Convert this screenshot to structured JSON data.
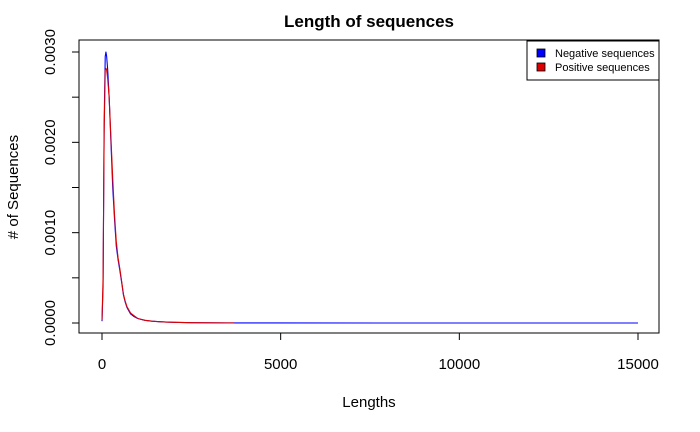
{
  "chart_data": {
    "type": "line",
    "title": "Length of sequences",
    "xlabel": "Lengths",
    "ylabel": "# of Sequences",
    "xlim": [
      0,
      15000
    ],
    "ylim": [
      0,
      0.003
    ],
    "x_ticks": [
      0,
      5000,
      10000,
      15000
    ],
    "x_tick_labels": [
      "0",
      "5000",
      "10000",
      "15000"
    ],
    "y_ticks": [
      0,
      0.0005,
      0.001,
      0.0015,
      0.002,
      0.0025,
      0.003
    ],
    "y_tick_labels": [
      "0.0000",
      "",
      "0.0010",
      "",
      "0.0020",
      "",
      "0.0030"
    ],
    "legend_position": "top-right",
    "grid": false,
    "series": [
      {
        "name": "Negative sequences",
        "color": "#0000ff",
        "x": [
          0,
          30,
          60,
          90,
          110,
          130,
          160,
          200,
          250,
          300,
          350,
          400,
          450,
          500,
          550,
          600,
          650,
          700,
          800,
          900,
          1000,
          1200,
          1400,
          1600,
          1800,
          2000,
          2500,
          3000,
          3500,
          3700,
          5000,
          8000,
          10000,
          12000,
          15000
        ],
        "y": [
          2e-05,
          0.0004,
          0.0022,
          0.00295,
          0.003,
          0.00295,
          0.0028,
          0.0025,
          0.002,
          0.0015,
          0.00115,
          0.00085,
          0.0007,
          0.00058,
          0.00045,
          0.00031,
          0.00023,
          0.00017,
          0.0001,
          7e-05,
          5e-05,
          3e-05,
          2e-05,
          1.5e-05,
          1e-05,
          8e-06,
          4e-06,
          2e-06,
          1e-06,
          5e-07,
          2e-07,
          1e-07,
          5e-08,
          2e-08,
          1e-08
        ]
      },
      {
        "name": "Positive sequences",
        "color": "#dd0000",
        "x": [
          0,
          30,
          60,
          90,
          110,
          130,
          160,
          200,
          250,
          300,
          350,
          400,
          450,
          500,
          550,
          600,
          650,
          700,
          800,
          900,
          1000,
          1200,
          1400,
          1600,
          1800,
          2000,
          2500,
          3000,
          3500,
          3700
        ],
        "y": [
          3e-05,
          0.0005,
          0.0021,
          0.0028,
          0.00282,
          0.0028,
          0.0027,
          0.0025,
          0.00205,
          0.0016,
          0.0012,
          0.0009,
          0.00072,
          0.0006,
          0.00046,
          0.00032,
          0.00024,
          0.00018,
          0.00011,
          8e-05,
          5e-05,
          3e-05,
          2e-05,
          1.5e-05,
          1e-05,
          8e-06,
          4e-06,
          2e-06,
          1e-06,
          5e-07
        ]
      }
    ]
  }
}
